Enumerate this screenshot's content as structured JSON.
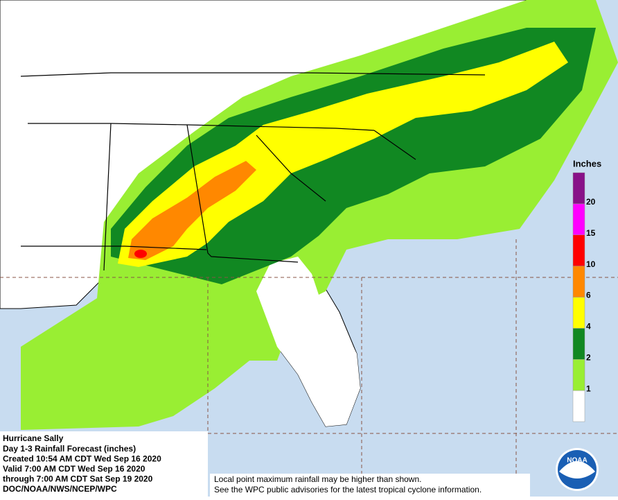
{
  "info": {
    "lines": [
      "Hurricane Sally",
      "Day 1-3 Rainfall Forecast (inches)",
      "Created 10:54 AM CDT Wed Sep 16 2020",
      "Valid 7:00 AM CDT Wed Sep 16 2020",
      "through 7:00 AM CDT Sat Sep 19 2020",
      "DOC/NOAA/NWS/NCEP/WPC"
    ]
  },
  "disclaimer": {
    "lines": [
      "Local point maximum rainfall may be higher than shown.",
      "See the WPC public advisories for the latest tropical cyclone information."
    ]
  },
  "legend": {
    "title": "Inches",
    "ticks": [
      1,
      2,
      4,
      6,
      10,
      15,
      20
    ],
    "colors": [
      "#ffffff",
      "#99ee33",
      "#118822",
      "#ffff00",
      "#ff8800",
      "#ff0000",
      "#ff00ff",
      "#881188"
    ]
  },
  "logo": {
    "text": "NOAA"
  }
}
